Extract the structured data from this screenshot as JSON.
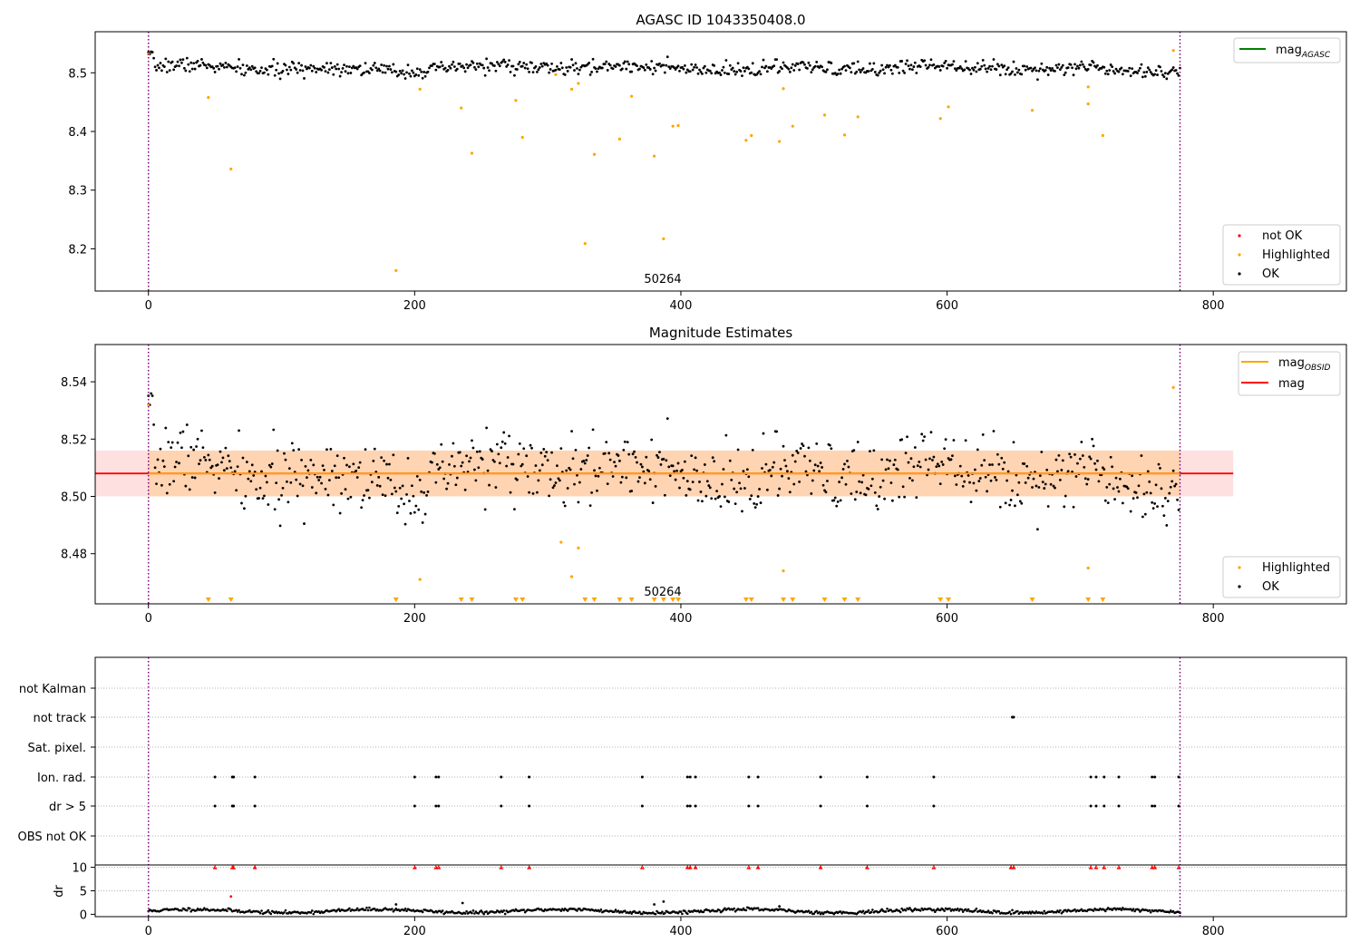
{
  "chart_data": [
    {
      "type": "scatter",
      "title": "AGASC ID 1043350408.0",
      "xlim": [
        -40,
        900
      ],
      "ylim": [
        8.128,
        8.57
      ],
      "xticks": [
        0,
        200,
        400,
        600,
        800
      ],
      "yticks": [
        8.2,
        8.3,
        8.4,
        8.5
      ],
      "ytick_labels": [
        "8.2",
        "8.3",
        "8.4",
        "8.5"
      ],
      "obsid_label": "50264",
      "obsid_label_x": 385,
      "obsid_bounds": [
        0,
        775
      ],
      "legend_top": [
        {
          "label": "mag",
          "sub": "AGASC",
          "color": "#008000"
        }
      ],
      "legend_bottom": [
        {
          "label": "not OK",
          "color": "#ff0000"
        },
        {
          "label": "Highlighted",
          "color": "#ffa500"
        },
        {
          "label": "OK",
          "color": "#000000"
        }
      ],
      "ok_model": {
        "n": 776,
        "base": 8.508,
        "noise": 0.006,
        "seed": 7
      },
      "highlighted": [
        [
          0,
          8.532
        ],
        [
          45,
          8.458
        ],
        [
          62,
          8.336
        ],
        [
          186,
          8.163
        ],
        [
          204,
          8.472
        ],
        [
          235,
          8.44
        ],
        [
          243,
          8.363
        ],
        [
          276,
          8.453
        ],
        [
          281,
          8.39
        ],
        [
          306,
          8.497
        ],
        [
          318,
          8.472
        ],
        [
          323,
          8.482
        ],
        [
          328,
          8.209
        ],
        [
          335,
          8.361
        ],
        [
          354,
          8.387
        ],
        [
          363,
          8.46
        ],
        [
          380,
          8.358
        ],
        [
          387,
          8.217
        ],
        [
          394,
          8.409
        ],
        [
          398,
          8.41
        ],
        [
          449,
          8.385
        ],
        [
          453,
          8.393
        ],
        [
          474,
          8.383
        ],
        [
          477,
          8.473
        ],
        [
          484,
          8.409
        ],
        [
          508,
          8.428
        ],
        [
          523,
          8.394
        ],
        [
          533,
          8.425
        ],
        [
          595,
          8.422
        ],
        [
          601,
          8.442
        ],
        [
          664,
          8.436
        ],
        [
          706,
          8.476
        ],
        [
          706,
          8.447
        ],
        [
          717,
          8.393
        ],
        [
          770,
          8.538
        ]
      ]
    },
    {
      "type": "scatter",
      "title": "Magnitude Estimates",
      "xlim": [
        -40,
        900
      ],
      "ylim": [
        8.4625,
        8.553
      ],
      "xticks": [
        0,
        200,
        400,
        600,
        800
      ],
      "yticks": [
        8.48,
        8.5,
        8.52,
        8.54
      ],
      "ytick_labels": [
        "8.48",
        "8.50",
        "8.52",
        "8.54"
      ],
      "obsid_label": "50264",
      "obsid_label_x": 385,
      "obsid_bounds": [
        0,
        775
      ],
      "mag": 8.508,
      "mag_obsid": 8.508,
      "band_outer": [
        8.5,
        8.516
      ],
      "band_inner": [
        8.5,
        8.516
      ],
      "band_x": [
        -40,
        815
      ],
      "band_inner_x": [
        0,
        775
      ],
      "legend_top": [
        {
          "label": "mag",
          "sub": "OBSID",
          "color": "#ffa500"
        },
        {
          "label": "mag",
          "sub": "",
          "color": "#ff0000"
        }
      ],
      "legend_bottom": [
        {
          "label": "Highlighted",
          "color": "#ffa500"
        },
        {
          "label": "OK",
          "color": "#000000"
        }
      ],
      "highlighted": [
        [
          0,
          8.532
        ],
        [
          204,
          8.471
        ],
        [
          310,
          8.484
        ],
        [
          318,
          8.472
        ],
        [
          323,
          8.482
        ],
        [
          477,
          8.474
        ],
        [
          706,
          8.475
        ],
        [
          770,
          8.538
        ]
      ],
      "clipped_markers_x": [
        45,
        62,
        186,
        235,
        243,
        276,
        281,
        328,
        335,
        354,
        363,
        380,
        387,
        394,
        398,
        449,
        453,
        477,
        484,
        508,
        523,
        533,
        595,
        601,
        664,
        706,
        717
      ]
    },
    {
      "type": "scatter",
      "title": "",
      "xlim": [
        -40,
        900
      ],
      "xticks": [
        0,
        200,
        400,
        600,
        800
      ],
      "obsid_bounds": [
        0,
        775
      ],
      "flag_rows": [
        "not Kalman",
        "not track",
        "Sat. pixel.",
        "Ion. rad.",
        "dr > 5",
        "OBS not OK"
      ],
      "flags": {
        "not track": [
          649,
          650
        ],
        "Ion. rad.": [
          50,
          63,
          64,
          80,
          200,
          216,
          218,
          265,
          286,
          371,
          405,
          407,
          411,
          451,
          458,
          505,
          540,
          590,
          708,
          712,
          718,
          729,
          754,
          756,
          774
        ],
        "dr > 5": [
          50,
          63,
          64,
          80,
          200,
          216,
          218,
          265,
          286,
          371,
          405,
          407,
          411,
          451,
          458,
          505,
          540,
          590,
          708,
          712,
          718,
          729,
          754,
          756,
          774
        ]
      },
      "dr_ylabel": "dr",
      "dr_yticks": [
        0,
        5,
        10
      ],
      "dr_ylim": [
        -0.5,
        10.5
      ],
      "dr_clipped_x": [
        50,
        63,
        64,
        80,
        200,
        216,
        218,
        265,
        286,
        371,
        405,
        407,
        411,
        451,
        458,
        505,
        540,
        590,
        648,
        650,
        708,
        712,
        718,
        729,
        754,
        756,
        774
      ],
      "dr_outliers": [
        [
          62,
          3.8
        ],
        [
          186,
          2.1
        ],
        [
          236,
          2.4
        ],
        [
          380,
          2.1
        ],
        [
          387,
          2.7
        ],
        [
          474,
          1.7
        ]
      ],
      "dr_model": {
        "base": 0.7,
        "noise": 0.35,
        "seed": 11
      }
    }
  ]
}
